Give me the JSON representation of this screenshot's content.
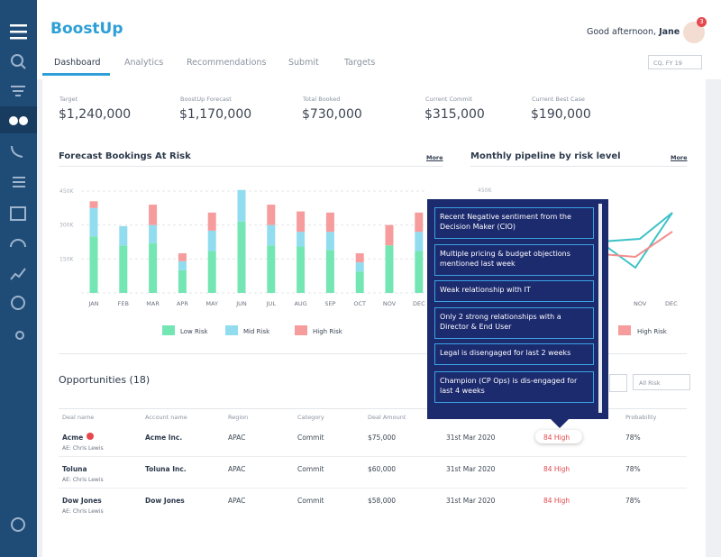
{
  "header": {
    "logo": "BoostUp",
    "greeting": "Good afternoon,",
    "user": "Jane",
    "notifications": "3"
  },
  "tabs": [
    "Dashboard",
    "Analytics",
    "Recommendations",
    "Submit",
    "Targets"
  ],
  "period_filter": "CQ, FY 19",
  "kpis": [
    {
      "label": "Target",
      "value": "$1,240,000"
    },
    {
      "label": "BoostUp Forecast",
      "value": "$1,170,000"
    },
    {
      "label": "Total Booked",
      "value": "$730,000"
    },
    {
      "label": "Current Commit",
      "value": "$315,000"
    },
    {
      "label": "Current Best Case",
      "value": "$190,000"
    }
  ],
  "forecast_chart": {
    "type": "bar",
    "stacked": true,
    "title": "Forecast Bookings At Risk",
    "more": "More",
    "categories": [
      "JAN",
      "FEB",
      "MAR",
      "APR",
      "MAY",
      "JUN",
      "JUL",
      "AUG",
      "SEP",
      "OCT",
      "NOV",
      "DEC"
    ],
    "series": [
      {
        "name": "Low Risk",
        "color": "#74e6b4",
        "values": [
          250000,
          210000,
          220000,
          100000,
          185000,
          315000,
          210000,
          205000,
          190000,
          95000,
          210000,
          185000
        ]
      },
      {
        "name": "Mid Risk",
        "color": "#92dcf0",
        "values": [
          125000,
          85000,
          80000,
          40000,
          90000,
          140000,
          90000,
          65000,
          80000,
          40000,
          0,
          85000
        ]
      },
      {
        "name": "High Risk",
        "color": "#f69c9c",
        "values": [
          30000,
          0,
          90000,
          35000,
          80000,
          0,
          90000,
          90000,
          85000,
          40000,
          90000,
          85000
        ]
      }
    ],
    "ylim": [
      0,
      450000
    ],
    "yticks": [
      {
        "value": 150000,
        "label": "150K"
      },
      {
        "value": 300000,
        "label": "300K"
      },
      {
        "value": 450000,
        "label": "450K"
      }
    ],
    "grid": true
  },
  "pipeline_chart": {
    "title": "Monthly pipeline by risk level",
    "more": "More",
    "ytick_label": "450K",
    "categories": [
      "NOV",
      "DEC"
    ],
    "legend": "High Risk"
  },
  "tooltip": [
    "Recent Negative sentiment from the Decision Maker (CIO)",
    "Multiple pricing & budget objections mentioned last week",
    "Weak relationship with IT",
    "Only 2 strong relationships with a Director & End User",
    "Legal is disengaged for last 2 weeks",
    "Champion (CP Ops) is dis-engaged for last 4 weeks"
  ],
  "opportunities": {
    "title": "Opportunities (18)",
    "risk_filter": "All Risk",
    "columns": [
      "Deal name",
      "Account name",
      "Region",
      "Category",
      "Deal Amount",
      "Probability"
    ],
    "rows": [
      {
        "deal": "Acme",
        "ae": "AE: Chris Lewis",
        "account": "Acme Inc.",
        "region": "APAC",
        "category": "Commit",
        "amount": "$75,000",
        "close": "31st Mar 2020",
        "risk": "84 High",
        "probability": "78%"
      },
      {
        "deal": "Toluna",
        "ae": "AE: Chris Lewis",
        "account": "Toluna Inc.",
        "region": "APAC",
        "category": "Commit",
        "amount": "$60,000",
        "close": "31st Mar 2020",
        "risk": "84 High",
        "probability": "78%"
      },
      {
        "deal": "Dow Jones",
        "ae": "AE: Chris Lewis",
        "account": "Dow Jones",
        "region": "APAC",
        "category": "Commit",
        "amount": "$58,000",
        "close": "31st Mar 2020",
        "risk": "84 High",
        "probability": "78%"
      }
    ]
  }
}
